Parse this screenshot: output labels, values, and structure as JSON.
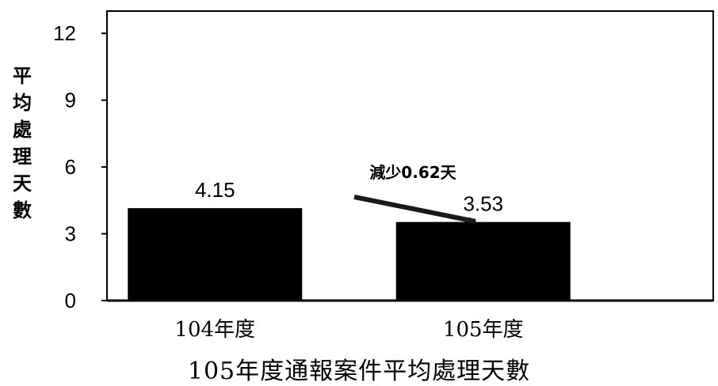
{
  "chart_data": {
    "type": "bar",
    "categories": [
      "104年度",
      "105年度"
    ],
    "values": [
      4.15,
      3.53
    ],
    "value_labels": [
      "4.15",
      "3.53"
    ],
    "yticks": [
      0,
      3,
      6,
      9,
      12
    ],
    "ylim": [
      0,
      13
    ],
    "ylabel": "平均處理天數",
    "xlabel": "105年度通報案件平均處理天數",
    "annotation": "減少0.62天",
    "grid": false,
    "colors": {
      "bar": "#000000",
      "axis": "#000000",
      "arrow": "#1a1a1a",
      "background": "#ffffff"
    }
  }
}
